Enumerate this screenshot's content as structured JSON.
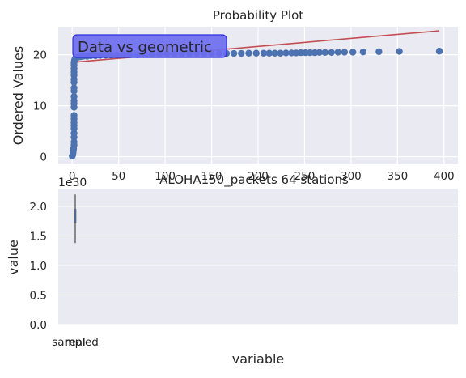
{
  "colors": {
    "panel_bg": "#eaeaf2",
    "grid": "#ffffff",
    "points": "#4c72b0",
    "fit_line": "#c44e52",
    "annotation_fill": "#6c6cf0",
    "annotation_border": "#3030e0",
    "box_fill": "#4c72b0",
    "text": "#262626"
  },
  "chart_data": [
    {
      "type": "scatter",
      "title": "Probability Plot",
      "xlabel": "",
      "ylabel": "Ordered Values",
      "xlim": [
        -15,
        415
      ],
      "ylim": [
        -1.5,
        25.5
      ],
      "xticks": [
        0,
        50,
        100,
        150,
        200,
        250,
        300,
        350,
        400
      ],
      "xtick_labels": [
        "0",
        "50",
        "100",
        "150",
        "200",
        "250",
        "300",
        "350",
        "400"
      ],
      "yticks": [
        0,
        10,
        20
      ],
      "ytick_labels": [
        "0",
        "10",
        "20"
      ],
      "grid": true,
      "annotation": "Data vs geometric",
      "fit_line": {
        "x": [
          0,
          395
        ],
        "y": [
          18.5,
          24.7
        ]
      },
      "points": [
        [
          0,
          0.1
        ],
        [
          0.5,
          0.3
        ],
        [
          0.8,
          0.6
        ],
        [
          1,
          0.9
        ],
        [
          1.2,
          1.2
        ],
        [
          1.5,
          1.6
        ],
        [
          2,
          2.3
        ],
        [
          2,
          2.9
        ],
        [
          2,
          3.8
        ],
        [
          2,
          4.6
        ],
        [
          2,
          5.5
        ],
        [
          2,
          6.1
        ],
        [
          2,
          6.7
        ],
        [
          2,
          7.4
        ],
        [
          2,
          8.1
        ],
        [
          2,
          9.7
        ],
        [
          2,
          10.4
        ],
        [
          2,
          11.0
        ],
        [
          2,
          11.8
        ],
        [
          2,
          12.9
        ],
        [
          2,
          13.5
        ],
        [
          2,
          14.6
        ],
        [
          2,
          15.2
        ],
        [
          2,
          16.0
        ],
        [
          2,
          16.6
        ],
        [
          2,
          17.3
        ],
        [
          2,
          18.0
        ],
        [
          2,
          18.5
        ],
        [
          2.5,
          18.9
        ],
        [
          3,
          19.2
        ],
        [
          4,
          19.4
        ],
        [
          6,
          19.5
        ],
        [
          9,
          19.6
        ],
        [
          12,
          19.7
        ],
        [
          16,
          19.7
        ],
        [
          20,
          19.8
        ],
        [
          25,
          19.8
        ],
        [
          30,
          19.85
        ],
        [
          36,
          19.9
        ],
        [
          42,
          19.9
        ],
        [
          48,
          19.95
        ],
        [
          55,
          20.0
        ],
        [
          62,
          20.0
        ],
        [
          70,
          20.0
        ],
        [
          78,
          20.05
        ],
        [
          86,
          20.05
        ],
        [
          94,
          20.1
        ],
        [
          102,
          20.1
        ],
        [
          110,
          20.1
        ],
        [
          118,
          20.15
        ],
        [
          126,
          20.15
        ],
        [
          134,
          20.2
        ],
        [
          142,
          20.2
        ],
        [
          150,
          20.2
        ],
        [
          158,
          20.2
        ],
        [
          166,
          20.25
        ],
        [
          174,
          20.25
        ],
        [
          182,
          20.25
        ],
        [
          190,
          20.3
        ],
        [
          198,
          20.3
        ],
        [
          206,
          20.3
        ],
        [
          212,
          20.3
        ],
        [
          218,
          20.3
        ],
        [
          224,
          20.3
        ],
        [
          230,
          20.35
        ],
        [
          236,
          20.35
        ],
        [
          241,
          20.35
        ],
        [
          246,
          20.4
        ],
        [
          251,
          20.4
        ],
        [
          256,
          20.4
        ],
        [
          261,
          20.4
        ],
        [
          266,
          20.45
        ],
        [
          272,
          20.45
        ],
        [
          279,
          20.45
        ],
        [
          286,
          20.5
        ],
        [
          293,
          20.5
        ],
        [
          302,
          20.5
        ],
        [
          313,
          20.55
        ],
        [
          330,
          20.6
        ],
        [
          352,
          20.65
        ],
        [
          395,
          20.7
        ]
      ]
    },
    {
      "type": "box",
      "title": "",
      "xlabel": "variable",
      "ylabel": "value",
      "offset_label": "1e30",
      "ylim": [
        0,
        2.3
      ],
      "yticks": [
        0,
        0.5,
        1.0,
        1.5,
        2.0
      ],
      "ytick_labels": [
        "0.0",
        "0.5",
        "1.0",
        "1.5",
        "2.0"
      ],
      "categories": [
        "sampled",
        "real"
      ],
      "grid": true,
      "whisker": {
        "low": 1.38,
        "high": 2.2
      },
      "box": {
        "q1": 1.72,
        "q3": 1.95
      }
    }
  ],
  "overlay_label": "ALOHA150_packets 64 stations"
}
